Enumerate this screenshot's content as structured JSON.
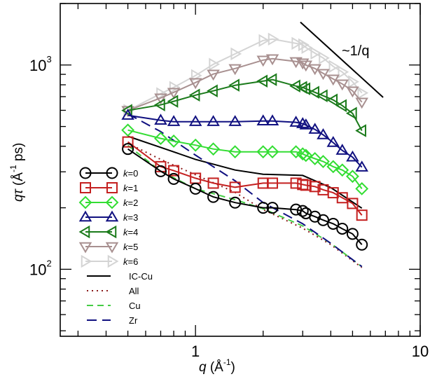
{
  "chart_data": {
    "type": "line",
    "title": "",
    "xlabel": "q (Å^-1)",
    "xlabel_parts": {
      "var": "q",
      "unit_open": " (Å",
      "unit_exp": "-1",
      "unit_close": ")"
    },
    "ylabel": "qτ (Å^-1 ps)",
    "ylabel_parts": {
      "var": "qτ",
      "unit_open": " (Å",
      "unit_exp": "-1",
      "unit_close": " ps)"
    },
    "xscale": "log",
    "yscale": "log",
    "xlim": [
      0.25,
      10
    ],
    "ylim": [
      47,
      2000
    ],
    "grid": false,
    "legend_position": "left-center",
    "x_ticks": [
      {
        "value": 1,
        "label": "1"
      },
      {
        "value": 10,
        "label": "10"
      }
    ],
    "y_ticks": [
      {
        "value": 100,
        "base": "10",
        "exp": "2"
      },
      {
        "value": 1000,
        "base": "10",
        "exp": "3"
      }
    ],
    "x": [
      0.5,
      0.7,
      0.8,
      1.0,
      1.2,
      1.5,
      2.0,
      2.2,
      2.8,
      3.0,
      3.1,
      3.4,
      3.7,
      4.1,
      4.5,
      5.0,
      5.5
    ],
    "series": [
      {
        "name": "k=0",
        "label_k": "k",
        "label_val": "=0",
        "color": "#000000",
        "marker": "circle",
        "line": "solid",
        "values": [
          388,
          302,
          277,
          248,
          226,
          212,
          200,
          200,
          196,
          193,
          188,
          181,
          174,
          167,
          158,
          149,
          132
        ]
      },
      {
        "name": "k=1",
        "label_k": "k",
        "label_val": "=1",
        "color": "#c42020",
        "marker": "square",
        "line": "solid",
        "values": [
          420,
          318,
          304,
          279,
          264,
          252,
          264,
          264,
          264,
          260,
          258,
          254,
          245,
          237,
          224,
          210,
          184
        ]
      },
      {
        "name": "k=2",
        "label_k": "k",
        "label_val": "=2",
        "color": "#33dd33",
        "marker": "diamond",
        "line": "solid",
        "values": [
          480,
          437,
          424,
          405,
          388,
          376,
          376,
          376,
          376,
          367,
          361,
          348,
          337,
          318,
          306,
          285,
          248
        ]
      },
      {
        "name": "k=3",
        "label_k": "k",
        "label_val": "=3",
        "color": "#101080",
        "marker": "triangle-up",
        "line": "solid",
        "values": [
          567,
          536,
          528,
          528,
          528,
          528,
          532,
          532,
          524,
          516,
          508,
          484,
          455,
          417,
          382,
          354,
          316
        ]
      },
      {
        "name": "k=4",
        "label_k": "k",
        "label_val": "=4",
        "color": "#1a7a1a",
        "marker": "triangle-left",
        "line": "solid",
        "values": [
          599,
          638,
          664,
          712,
          747,
          796,
          834,
          848,
          789,
          777,
          765,
          735,
          707,
          674,
          633,
          580,
          477
        ]
      },
      {
        "name": "k=5",
        "label_k": "k",
        "label_val": "=5",
        "color": "#a89090",
        "marker": "triangle-down",
        "line": "solid",
        "values": [
          599,
          690,
          735,
          821,
          903,
          961,
          1057,
          1074,
          1040,
          1024,
          1000,
          961,
          910,
          854,
          808,
          747,
          658
        ]
      },
      {
        "name": "k=6",
        "label_k": "k",
        "label_val": "=6",
        "color": "#d4d4d4",
        "marker": "triangle-right",
        "line": "solid",
        "values": [
          599,
          724,
          777,
          888,
          1008,
          1134,
          1318,
          1339,
          1276,
          1256,
          1218,
          1143,
          1082,
          984,
          924,
          828,
          730
        ]
      }
    ],
    "curves": [
      {
        "name": "IC-Cu",
        "color": "#000000",
        "line": "solid",
        "x": [
          0.5,
          0.7,
          1.0,
          1.5,
          2.0,
          3.0,
          4.0,
          5.5
        ],
        "values": [
          448,
          395,
          345,
          306,
          292,
          288,
          251,
          199
        ]
      },
      {
        "name": "All",
        "color": "#8b1a1a",
        "line": "dotted",
        "x": [
          0.5,
          0.7,
          1.0,
          1.5,
          2.0,
          3.0,
          4.0,
          5.5
        ],
        "values": [
          414,
          345,
          290,
          238,
          196,
          159,
          132,
          102
        ]
      },
      {
        "name": "Cu",
        "color": "#44cc44",
        "line": "dashed",
        "x": [
          0.5,
          0.7,
          1.0,
          1.5,
          2.0,
          3.0,
          4.0,
          5.5
        ],
        "values": [
          404,
          302,
          248,
          219,
          198,
          163,
          134,
          103
        ]
      },
      {
        "name": "Zr",
        "color": "#101080",
        "line": "long-dashed",
        "x": [
          0.5,
          0.7,
          1.0,
          1.5,
          2.0,
          3.0,
          4.0,
          5.5
        ],
        "values": [
          576,
          472,
          362,
          271,
          212,
          167,
          134,
          103
        ]
      }
    ],
    "annotations": [
      {
        "text": "~1/q",
        "type": "reference-line",
        "slope": -1,
        "x_range": [
          2.93,
          6.84
        ],
        "coefficient": 4750
      }
    ]
  }
}
